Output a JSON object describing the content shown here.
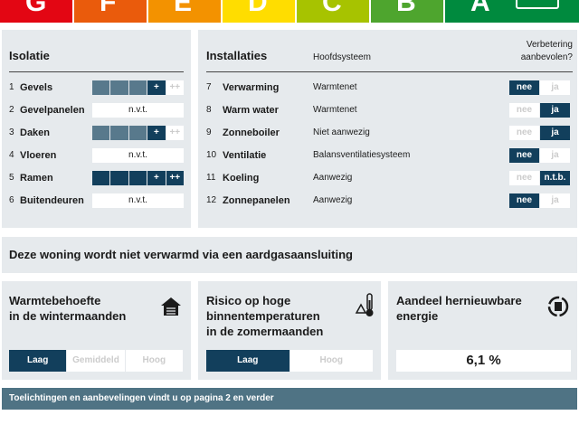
{
  "energy_label": {
    "classes": [
      "G",
      "F",
      "E",
      "D",
      "C",
      "B",
      "A"
    ]
  },
  "isolatie": {
    "title": "Isolatie",
    "scale_marks": [
      "+",
      "++"
    ],
    "rows": [
      {
        "number": "1",
        "label": "Gevels",
        "rating": "+"
      },
      {
        "number": "2",
        "label": "Gevelpanelen",
        "rating": "n.v.t."
      },
      {
        "number": "3",
        "label": "Daken",
        "rating": "+"
      },
      {
        "number": "4",
        "label": "Vloeren",
        "rating": "n.v.t."
      },
      {
        "number": "5",
        "label": "Ramen",
        "rating": "++"
      },
      {
        "number": "6",
        "label": "Buitendeuren",
        "rating": "n.v.t."
      }
    ]
  },
  "installaties": {
    "title": "Installaties",
    "column_main": "Hoofdsysteem",
    "column_advice": [
      "Verbetering",
      "aanbevolen?"
    ],
    "rows": [
      {
        "number": "7",
        "label": "Verwarming",
        "system": "Warmtenet",
        "options": [
          "nee",
          "ja"
        ],
        "selected": "nee"
      },
      {
        "number": "8",
        "label": "Warm water",
        "system": "Warmtenet",
        "options": [
          "nee",
          "ja"
        ],
        "selected": "ja"
      },
      {
        "number": "9",
        "label": "Zonneboiler",
        "system": "Niet aanwezig",
        "options": [
          "nee",
          "ja"
        ],
        "selected": "ja"
      },
      {
        "number": "10",
        "label": "Ventilatie",
        "system": "Balansventilatiesysteem",
        "options": [
          "nee",
          "ja"
        ],
        "selected": "nee"
      },
      {
        "number": "11",
        "label": "Koeling",
        "system": "Aanwezig",
        "options": [
          "nee",
          "n.t.b."
        ],
        "selected": "n.t.b."
      },
      {
        "number": "12",
        "label": "Zonnepanelen",
        "system": "Aanwezig",
        "options": [
          "nee",
          "ja"
        ],
        "selected": "nee"
      }
    ]
  },
  "banner": "Deze woning wordt niet verwarmd via een aardgasaansluiting",
  "indicators": [
    {
      "title": [
        "Warmtebehoefte",
        "in de wintermaanden"
      ],
      "scale": [
        "Laag",
        "Gemiddeld",
        "Hoog"
      ],
      "selected": "Laag"
    },
    {
      "title": [
        "Risico op hoge",
        "binnentemperaturen",
        "in de zomermaanden"
      ],
      "scale": [
        "Laag",
        "Hoog"
      ],
      "selected": "Laag"
    },
    {
      "title": [
        "Aandeel hernieuwbare",
        "energie"
      ],
      "value": "6,1 %"
    }
  ],
  "footer": "Toelichtingen en aanbevelingen vindt u op pagina 2 en verder"
}
